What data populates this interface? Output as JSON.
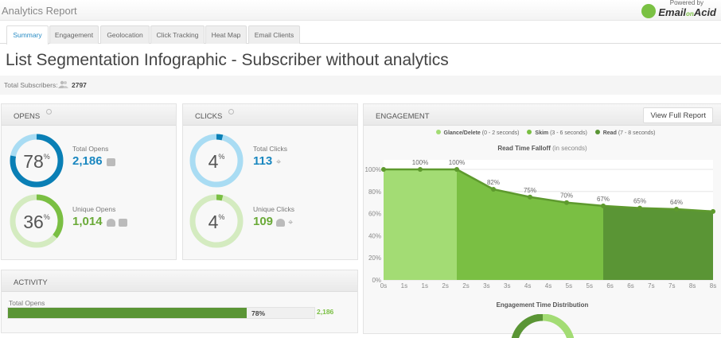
{
  "header": {
    "title": "Analytics Report",
    "logo_powered": "Powered by",
    "logo_text": "Email",
    "logo_on": "on",
    "logo_acid": "Acid"
  },
  "tabs": [
    {
      "label": "Summary",
      "active": true
    },
    {
      "label": "Engagement"
    },
    {
      "label": "Geolocation"
    },
    {
      "label": "Click Tracking"
    },
    {
      "label": "Heat Map"
    },
    {
      "label": "Email Clients"
    }
  ],
  "page_title": "List Segmentation Infographic - Subscriber without analytics",
  "subscribers": {
    "label": "Total Subscribers:",
    "value": "2797",
    "icon": "users-icon"
  },
  "opens": {
    "title": "OPENS",
    "total": {
      "percent": 78,
      "percent_label": "78",
      "label": "Total Opens",
      "value": "2,186"
    },
    "unique": {
      "percent": 36,
      "percent_label": "36",
      "label": "Unique Opens",
      "value": "1,014"
    }
  },
  "clicks": {
    "title": "CLICKS",
    "total": {
      "percent": 4,
      "percent_label": "4",
      "label": "Total Clicks",
      "value": "113"
    },
    "unique": {
      "percent": 4,
      "percent_label": "4",
      "label": "Unique Clicks",
      "value": "109"
    }
  },
  "activity": {
    "title": "ACTIVITY",
    "rows": [
      {
        "label": "Total Opens",
        "percent": 78,
        "percent_label": "78%",
        "value": "2,186"
      }
    ]
  },
  "engagement": {
    "title": "ENGAGEMENT",
    "button": "View Full Report",
    "legend": [
      {
        "name": "Glance/Delete",
        "range": "(0 - 2 seconds)",
        "color": "#a3dc74"
      },
      {
        "name": "Skim",
        "range": "(3 - 6 seconds)",
        "color": "#7abf43"
      },
      {
        "name": "Read",
        "range": "(7 - 8 seconds)",
        "color": "#5a9535"
      }
    ],
    "chart_title": "Read Time Falloff",
    "chart_subtitle": "(in seconds)",
    "distribution_title": "Engagement Time Distribution"
  },
  "colors": {
    "blue": "#0a7fb5",
    "light_blue": "#a9dcf3",
    "green": "#7abf43",
    "light_green": "#d4ebc0",
    "dark_green": "#5a9535"
  },
  "chart_data": {
    "type": "area",
    "title": "Read Time Falloff (in seconds)",
    "x_ticks": [
      "0s",
      "1s",
      "1s",
      "2s",
      "2s",
      "3s",
      "3s",
      "4s",
      "4s",
      "5s",
      "5s",
      "6s",
      "6s",
      "7s",
      "7s",
      "8s",
      "8s"
    ],
    "y_ticks": [
      "0%",
      "20%",
      "40%",
      "60%",
      "80%",
      "100%"
    ],
    "ylim": [
      0,
      100
    ],
    "values": [
      100,
      100,
      100,
      82,
      75,
      70,
      67,
      65,
      64,
      62
    ],
    "point_labels": [
      "",
      "100%",
      "100%",
      "82%",
      "75%",
      "70%",
      "67%",
      "65%",
      "64%",
      ""
    ],
    "regions": [
      {
        "name": "Glance/Delete",
        "from": 0,
        "to": 2
      },
      {
        "name": "Skim",
        "from": 2,
        "to": 6
      },
      {
        "name": "Read",
        "from": 6,
        "to": 9
      }
    ],
    "grid": true
  }
}
